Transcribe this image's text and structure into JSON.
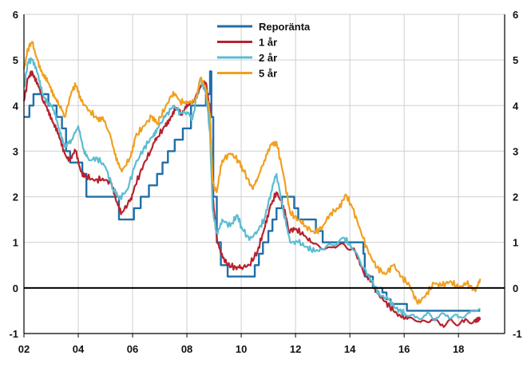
{
  "chart_data": {
    "type": "line",
    "title": "",
    "xlabel": "",
    "ylabel": "",
    "xlim": [
      2002,
      2019.7
    ],
    "ylim": [
      -1,
      6
    ],
    "grid": true,
    "legend_position": "top-center",
    "x_ticks": [
      {
        "value": 2002,
        "label": "02"
      },
      {
        "value": 2004,
        "label": "04"
      },
      {
        "value": 2006,
        "label": "06"
      },
      {
        "value": 2008,
        "label": "08"
      },
      {
        "value": 2010,
        "label": "10"
      },
      {
        "value": 2012,
        "label": "12"
      },
      {
        "value": 2014,
        "label": "14"
      },
      {
        "value": 2016,
        "label": "16"
      },
      {
        "value": 2018,
        "label": "18"
      }
    ],
    "y_ticks": [
      {
        "value": 6,
        "label": "6"
      },
      {
        "value": 5,
        "label": "5"
      },
      {
        "value": 4,
        "label": "4"
      },
      {
        "value": 3,
        "label": "3"
      },
      {
        "value": 2,
        "label": "2"
      },
      {
        "value": 1,
        "label": "1"
      },
      {
        "value": 0,
        "label": "0"
      },
      {
        "value": -1,
        "label": "-1"
      }
    ],
    "series": [
      {
        "name": "Reporänta",
        "color": "#1f6fa8",
        "step": true,
        "points": [
          [
            2002.0,
            3.75
          ],
          [
            2002.2,
            4.0
          ],
          [
            2002.35,
            4.25
          ],
          [
            2002.9,
            4.0
          ],
          [
            2003.2,
            3.75
          ],
          [
            2003.4,
            3.5
          ],
          [
            2003.55,
            3.0
          ],
          [
            2003.7,
            2.75
          ],
          [
            2004.15,
            2.5
          ],
          [
            2004.3,
            2.0
          ],
          [
            2005.5,
            1.5
          ],
          [
            2006.05,
            1.75
          ],
          [
            2006.3,
            2.0
          ],
          [
            2006.6,
            2.25
          ],
          [
            2006.9,
            2.5
          ],
          [
            2007.1,
            2.75
          ],
          [
            2007.3,
            3.0
          ],
          [
            2007.55,
            3.25
          ],
          [
            2007.85,
            3.5
          ],
          [
            2008.15,
            4.0
          ],
          [
            2008.7,
            4.25
          ],
          [
            2008.85,
            4.75
          ],
          [
            2008.9,
            3.75
          ],
          [
            2008.97,
            2.0
          ],
          [
            2009.1,
            1.0
          ],
          [
            2009.25,
            0.5
          ],
          [
            2009.5,
            0.25
          ],
          [
            2010.5,
            0.5
          ],
          [
            2010.65,
            0.75
          ],
          [
            2010.8,
            1.0
          ],
          [
            2011.0,
            1.25
          ],
          [
            2011.15,
            1.5
          ],
          [
            2011.3,
            1.75
          ],
          [
            2011.5,
            2.0
          ],
          [
            2011.95,
            1.75
          ],
          [
            2012.1,
            1.5
          ],
          [
            2012.75,
            1.25
          ],
          [
            2013.0,
            1.0
          ],
          [
            2014.5,
            0.75
          ],
          [
            2014.55,
            0.25
          ],
          [
            2014.85,
            0.0
          ],
          [
            2015.2,
            -0.1
          ],
          [
            2015.35,
            -0.25
          ],
          [
            2015.5,
            -0.35
          ],
          [
            2016.1,
            -0.5
          ],
          [
            2018.8,
            -0.5
          ]
        ]
      },
      {
        "name": "1 år",
        "color": "#b5232e",
        "step": false,
        "points": [
          [
            2002.0,
            4.1
          ],
          [
            2002.15,
            4.6
          ],
          [
            2002.3,
            4.75
          ],
          [
            2002.5,
            4.5
          ],
          [
            2002.7,
            4.1
          ],
          [
            2002.9,
            3.9
          ],
          [
            2003.1,
            3.6
          ],
          [
            2003.3,
            3.3
          ],
          [
            2003.5,
            2.95
          ],
          [
            2003.7,
            2.8
          ],
          [
            2003.9,
            3.0
          ],
          [
            2004.1,
            2.55
          ],
          [
            2004.3,
            2.45
          ],
          [
            2004.6,
            2.35
          ],
          [
            2004.9,
            2.4
          ],
          [
            2005.2,
            2.3
          ],
          [
            2005.4,
            1.9
          ],
          [
            2005.6,
            1.65
          ],
          [
            2005.9,
            1.9
          ],
          [
            2006.1,
            2.25
          ],
          [
            2006.4,
            2.7
          ],
          [
            2006.7,
            3.05
          ],
          [
            2006.9,
            3.3
          ],
          [
            2007.2,
            3.55
          ],
          [
            2007.4,
            3.75
          ],
          [
            2007.6,
            3.95
          ],
          [
            2007.8,
            3.8
          ],
          [
            2008.0,
            4.05
          ],
          [
            2008.2,
            4.05
          ],
          [
            2008.5,
            4.4
          ],
          [
            2008.7,
            4.5
          ],
          [
            2008.85,
            3.9
          ],
          [
            2008.95,
            2.0
          ],
          [
            2009.1,
            1.1
          ],
          [
            2009.25,
            0.75
          ],
          [
            2009.5,
            0.5
          ],
          [
            2009.8,
            0.45
          ],
          [
            2010.0,
            0.45
          ],
          [
            2010.3,
            0.5
          ],
          [
            2010.6,
            0.8
          ],
          [
            2010.85,
            1.3
          ],
          [
            2011.05,
            1.75
          ],
          [
            2011.3,
            2.1
          ],
          [
            2011.55,
            1.8
          ],
          [
            2011.75,
            1.25
          ],
          [
            2012.0,
            1.3
          ],
          [
            2012.3,
            1.15
          ],
          [
            2012.6,
            1.0
          ],
          [
            2013.0,
            0.85
          ],
          [
            2013.4,
            0.9
          ],
          [
            2013.8,
            0.95
          ],
          [
            2014.2,
            0.8
          ],
          [
            2014.5,
            0.35
          ],
          [
            2014.8,
            0.15
          ],
          [
            2015.0,
            -0.1
          ],
          [
            2015.3,
            -0.3
          ],
          [
            2015.6,
            -0.5
          ],
          [
            2015.9,
            -0.65
          ],
          [
            2016.2,
            -0.65
          ],
          [
            2016.6,
            -0.75
          ],
          [
            2017.0,
            -0.7
          ],
          [
            2017.4,
            -0.8
          ],
          [
            2017.8,
            -0.75
          ],
          [
            2018.2,
            -0.75
          ],
          [
            2018.6,
            -0.7
          ],
          [
            2018.8,
            -0.7
          ]
        ]
      },
      {
        "name": "2 år",
        "color": "#5bbcd2",
        "step": false,
        "points": [
          [
            2002.0,
            4.4
          ],
          [
            2002.15,
            4.95
          ],
          [
            2002.3,
            5.0
          ],
          [
            2002.5,
            4.7
          ],
          [
            2002.7,
            4.25
          ],
          [
            2002.9,
            4.05
          ],
          [
            2003.1,
            3.9
          ],
          [
            2003.3,
            3.5
          ],
          [
            2003.5,
            3.1
          ],
          [
            2003.75,
            3.25
          ],
          [
            2004.0,
            3.55
          ],
          [
            2004.2,
            3.05
          ],
          [
            2004.4,
            2.8
          ],
          [
            2004.7,
            2.85
          ],
          [
            2005.0,
            2.65
          ],
          [
            2005.3,
            2.15
          ],
          [
            2005.5,
            1.95
          ],
          [
            2005.8,
            2.15
          ],
          [
            2006.1,
            2.7
          ],
          [
            2006.4,
            3.05
          ],
          [
            2006.7,
            3.3
          ],
          [
            2006.9,
            3.5
          ],
          [
            2007.2,
            3.75
          ],
          [
            2007.5,
            4.0
          ],
          [
            2007.75,
            3.85
          ],
          [
            2008.0,
            3.85
          ],
          [
            2008.2,
            3.7
          ],
          [
            2008.5,
            4.6
          ],
          [
            2008.7,
            4.3
          ],
          [
            2008.85,
            3.4
          ],
          [
            2008.95,
            1.7
          ],
          [
            2009.1,
            1.2
          ],
          [
            2009.3,
            1.5
          ],
          [
            2009.6,
            1.35
          ],
          [
            2009.85,
            1.6
          ],
          [
            2010.0,
            1.35
          ],
          [
            2010.3,
            1.05
          ],
          [
            2010.6,
            1.25
          ],
          [
            2010.85,
            1.5
          ],
          [
            2011.1,
            2.1
          ],
          [
            2011.3,
            2.5
          ],
          [
            2011.55,
            1.7
          ],
          [
            2011.8,
            1.0
          ],
          [
            2012.1,
            1.0
          ],
          [
            2012.4,
            0.9
          ],
          [
            2012.7,
            0.8
          ],
          [
            2013.0,
            0.85
          ],
          [
            2013.4,
            0.95
          ],
          [
            2013.8,
            1.1
          ],
          [
            2014.1,
            0.85
          ],
          [
            2014.5,
            0.45
          ],
          [
            2014.8,
            0.15
          ],
          [
            2015.1,
            -0.15
          ],
          [
            2015.4,
            -0.25
          ],
          [
            2015.7,
            -0.45
          ],
          [
            2016.0,
            -0.55
          ],
          [
            2016.4,
            -0.65
          ],
          [
            2016.8,
            -0.6
          ],
          [
            2017.2,
            -0.65
          ],
          [
            2017.6,
            -0.6
          ],
          [
            2018.0,
            -0.65
          ],
          [
            2018.4,
            -0.55
          ],
          [
            2018.8,
            -0.45
          ]
        ]
      },
      {
        "name": "5 år",
        "color": "#f0a020",
        "step": false,
        "points": [
          [
            2002.0,
            4.8
          ],
          [
            2002.15,
            5.25
          ],
          [
            2002.3,
            5.4
          ],
          [
            2002.5,
            5.0
          ],
          [
            2002.7,
            4.65
          ],
          [
            2002.9,
            4.5
          ],
          [
            2003.1,
            4.25
          ],
          [
            2003.3,
            4.0
          ],
          [
            2003.5,
            3.75
          ],
          [
            2003.75,
            4.3
          ],
          [
            2003.9,
            4.45
          ],
          [
            2004.1,
            4.1
          ],
          [
            2004.4,
            3.9
          ],
          [
            2004.7,
            3.7
          ],
          [
            2004.9,
            3.75
          ],
          [
            2005.2,
            3.3
          ],
          [
            2005.4,
            2.8
          ],
          [
            2005.6,
            2.55
          ],
          [
            2005.9,
            2.85
          ],
          [
            2006.1,
            3.3
          ],
          [
            2006.4,
            3.55
          ],
          [
            2006.7,
            3.75
          ],
          [
            2006.9,
            3.6
          ],
          [
            2007.2,
            3.95
          ],
          [
            2007.5,
            4.3
          ],
          [
            2007.75,
            4.1
          ],
          [
            2008.0,
            4.05
          ],
          [
            2008.3,
            4.1
          ],
          [
            2008.5,
            4.6
          ],
          [
            2008.7,
            4.35
          ],
          [
            2008.85,
            3.8
          ],
          [
            2008.95,
            2.3
          ],
          [
            2009.1,
            2.1
          ],
          [
            2009.3,
            2.8
          ],
          [
            2009.6,
            2.95
          ],
          [
            2009.9,
            2.8
          ],
          [
            2010.1,
            2.55
          ],
          [
            2010.4,
            2.2
          ],
          [
            2010.6,
            2.4
          ],
          [
            2010.85,
            2.8
          ],
          [
            2011.1,
            3.15
          ],
          [
            2011.3,
            3.2
          ],
          [
            2011.55,
            2.5
          ],
          [
            2011.8,
            1.65
          ],
          [
            2012.1,
            1.5
          ],
          [
            2012.4,
            1.35
          ],
          [
            2012.7,
            1.2
          ],
          [
            2013.0,
            1.35
          ],
          [
            2013.3,
            1.65
          ],
          [
            2013.6,
            1.75
          ],
          [
            2013.85,
            2.05
          ],
          [
            2014.1,
            1.75
          ],
          [
            2014.4,
            1.25
          ],
          [
            2014.7,
            0.75
          ],
          [
            2015.0,
            0.45
          ],
          [
            2015.3,
            0.3
          ],
          [
            2015.6,
            0.5
          ],
          [
            2015.9,
            0.25
          ],
          [
            2016.2,
            0.05
          ],
          [
            2016.5,
            -0.35
          ],
          [
            2016.8,
            -0.15
          ],
          [
            2017.1,
            0.1
          ],
          [
            2017.4,
            0.05
          ],
          [
            2017.7,
            0.15
          ],
          [
            2018.0,
            0.0
          ],
          [
            2018.3,
            0.1
          ],
          [
            2018.6,
            -0.05
          ],
          [
            2018.8,
            0.2
          ]
        ]
      }
    ]
  }
}
